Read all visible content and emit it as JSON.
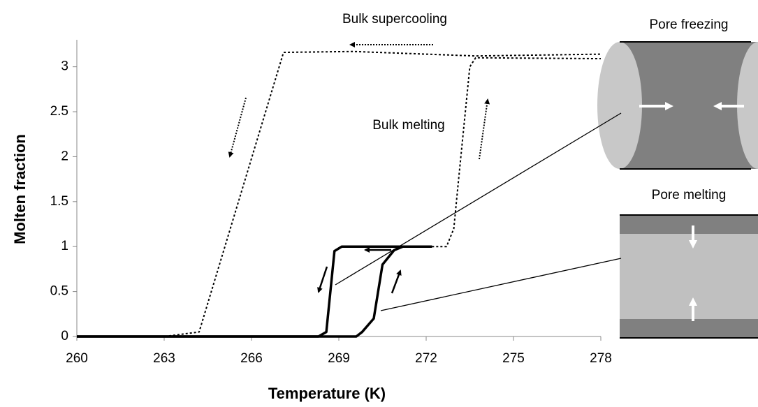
{
  "chart_data": {
    "type": "line",
    "x_label": "Temperature (K)",
    "y_label": "Molten fraction",
    "xlim": [
      260,
      278
    ],
    "xticks": [
      260,
      263,
      266,
      269,
      272,
      275,
      278
    ],
    "ylim": [
      0,
      3.3
    ],
    "yticks": [
      0,
      0.5,
      1,
      1.5,
      2,
      2.5,
      3
    ],
    "series": [
      {
        "color": "#000000",
        "line_style": "dotted",
        "x": [
          260,
          263,
          264.2,
          267.1,
          269.5,
          273.7,
          278
        ],
        "values": [
          0,
          0,
          0.05,
          3.16,
          3.17,
          3.12,
          3.14
        ]
      },
      {
        "color": "#000000",
        "line_style": "dotted",
        "x": [
          272.2,
          272.7,
          272.95,
          273.1,
          273.5,
          273.7,
          278
        ],
        "values": [
          1.0,
          1.0,
          1.2,
          1.7,
          3.0,
          3.1,
          3.09
        ]
      },
      {
        "color": "#000000",
        "line_style": "solid",
        "x": [
          272.2,
          269.1,
          268.85,
          268.57,
          268.3,
          260
        ],
        "values": [
          1.0,
          1.0,
          0.95,
          0.05,
          0,
          0
        ]
      },
      {
        "color": "#000000",
        "line_style": "solid",
        "x": [
          260,
          269.6,
          269.8,
          270.2,
          270.5,
          270.9,
          271.2,
          272.2
        ],
        "values": [
          0,
          0,
          0.05,
          0.2,
          0.8,
          0.96,
          1.0,
          1.0
        ]
      }
    ],
    "annotations": [
      "Bulk supercooling",
      "Bulk melting"
    ],
    "insets": [
      "Pore freezing",
      "Pore melting"
    ]
  }
}
